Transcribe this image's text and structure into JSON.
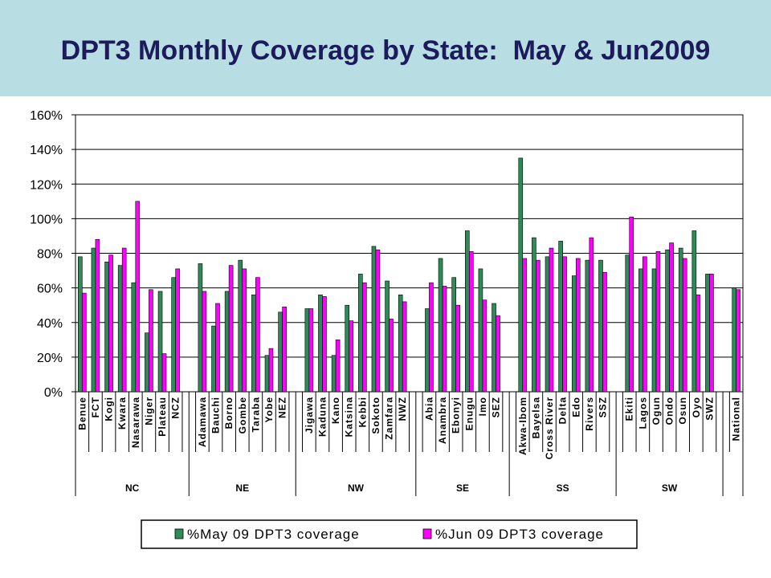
{
  "title": "DPT3 Monthly Coverage by State:  May & Jun2009",
  "colors": {
    "header_bg": "#b8dde3",
    "may": "#2e8b57",
    "jun": "#ff00ff"
  },
  "chart_data": {
    "type": "bar",
    "ylim": [
      0,
      160
    ],
    "yticks": [
      "0%",
      "20%",
      "40%",
      "60%",
      "80%",
      "100%",
      "120%",
      "140%",
      "160%"
    ],
    "grid": true,
    "legend_position": "bottom",
    "series": [
      {
        "name": "%May 09 DPT3 coverage",
        "color": "#2e8b57"
      },
      {
        "name": "%Jun 09 DPT3 coverage",
        "color": "#ff00ff"
      }
    ],
    "groups": [
      {
        "label": "NC",
        "categories": [
          {
            "name": "Benue",
            "may": 78,
            "jun": 57
          },
          {
            "name": "FCT",
            "may": 83,
            "jun": 88
          },
          {
            "name": "Kogi",
            "may": 75,
            "jun": 79
          },
          {
            "name": "Kwara",
            "may": 73,
            "jun": 83
          },
          {
            "name": "Nasarawa",
            "may": 63,
            "jun": 110
          },
          {
            "name": "Niger",
            "may": 34,
            "jun": 59
          },
          {
            "name": "Plateau",
            "may": 58,
            "jun": 22
          },
          {
            "name": "NCZ",
            "may": 66,
            "jun": 71
          }
        ]
      },
      {
        "label": "NE",
        "categories": [
          {
            "name": "Adamawa",
            "may": 74,
            "jun": 58
          },
          {
            "name": "Bauchi",
            "may": 38,
            "jun": 51
          },
          {
            "name": "Borno",
            "may": 58,
            "jun": 73
          },
          {
            "name": "Gombe",
            "may": 76,
            "jun": 71
          },
          {
            "name": "Taraba",
            "may": 56,
            "jun": 66
          },
          {
            "name": "Yobe",
            "may": 21,
            "jun": 25
          },
          {
            "name": "NEZ",
            "may": 46,
            "jun": 49
          }
        ]
      },
      {
        "label": "NW",
        "categories": [
          {
            "name": "Jigawa",
            "may": 48,
            "jun": 48
          },
          {
            "name": "Kaduna",
            "may": 56,
            "jun": 55
          },
          {
            "name": "Kano",
            "may": 21,
            "jun": 30
          },
          {
            "name": "Katsina",
            "may": 50,
            "jun": 41
          },
          {
            "name": "Kebbi",
            "may": 68,
            "jun": 63
          },
          {
            "name": "Sokoto",
            "may": 84,
            "jun": 82
          },
          {
            "name": "Zamfara",
            "may": 64,
            "jun": 42
          },
          {
            "name": "NWZ",
            "may": 56,
            "jun": 52
          }
        ]
      },
      {
        "label": "SE",
        "categories": [
          {
            "name": "Abia",
            "may": 48,
            "jun": 63
          },
          {
            "name": "Anambra",
            "may": 77,
            "jun": 61
          },
          {
            "name": "Ebonyi",
            "may": 66,
            "jun": 50
          },
          {
            "name": "Enugu",
            "may": 93,
            "jun": 81
          },
          {
            "name": "Imo",
            "may": 71,
            "jun": 53
          },
          {
            "name": "SEZ",
            "may": 51,
            "jun": 44
          }
        ]
      },
      {
        "label": "SS",
        "categories": [
          {
            "name": "Akwa-Ibom",
            "may": 135,
            "jun": 77
          },
          {
            "name": "Bayelsa",
            "may": 89,
            "jun": 76
          },
          {
            "name": "Cross River",
            "may": 78,
            "jun": 83
          },
          {
            "name": "Delta",
            "may": 87,
            "jun": 78
          },
          {
            "name": "Edo",
            "may": 67,
            "jun": 77
          },
          {
            "name": "Rivers",
            "may": 76,
            "jun": 89
          },
          {
            "name": "SSZ",
            "may": 76,
            "jun": 69
          }
        ]
      },
      {
        "label": "SW",
        "categories": [
          {
            "name": "Ekiti",
            "may": 79,
            "jun": 101
          },
          {
            "name": "Lagos",
            "may": 71,
            "jun": 78
          },
          {
            "name": "Ogun",
            "may": 71,
            "jun": 81
          },
          {
            "name": "Ondo",
            "may": 82,
            "jun": 86
          },
          {
            "name": "Osun",
            "may": 83,
            "jun": 77
          },
          {
            "name": "Oyo",
            "may": 93,
            "jun": 56
          },
          {
            "name": "SWZ",
            "may": 68,
            "jun": 68
          }
        ]
      },
      {
        "label": "",
        "categories": [
          {
            "name": "National",
            "may": 60,
            "jun": 59
          }
        ]
      }
    ]
  }
}
